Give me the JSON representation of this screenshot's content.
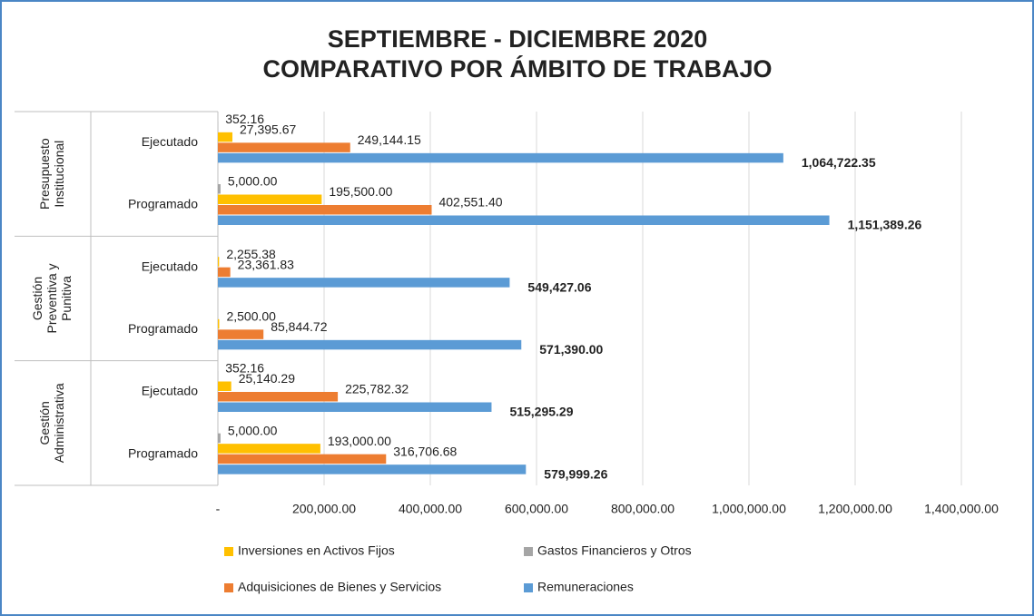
{
  "chart_data": {
    "type": "bar",
    "orientation": "horizontal",
    "title": [
      "SEPTIEMBRE - DICIEMBRE 2020",
      "COMPARATIVO POR ÁMBITO DE TRABAJO"
    ],
    "groups": [
      {
        "name": "Presupuesto Institucional",
        "categories": [
          "Ejecutado",
          "Programado"
        ]
      },
      {
        "name": "Gestión Preventiva y Punitiva",
        "categories": [
          "Ejecutado",
          "Programado"
        ]
      },
      {
        "name": "Gestión Administrativa",
        "categories": [
          "Ejecutado",
          "Programado"
        ]
      }
    ],
    "series": [
      {
        "name": "Gastos Financieros y Otros",
        "color": "#a5a5a5",
        "values": [
          352.16,
          5000,
          null,
          null,
          352.16,
          5000
        ],
        "value_labels": [
          "352.16",
          "5,000.00",
          null,
          null,
          "352.16",
          "5,000.00"
        ]
      },
      {
        "name": "Inversiones en Activos Fijos",
        "color": "#ffc000",
        "values": [
          27395.67,
          195500,
          2255.38,
          2500,
          25140.29,
          193000
        ],
        "value_labels": [
          "27,395.67",
          "195,500.00",
          "2,255.38",
          "2,500.00",
          "25,140.29",
          "193,000.00"
        ]
      },
      {
        "name": "Adquisiciones de Bienes y Servicios",
        "color": "#ed7d31",
        "values": [
          249144.15,
          402551.4,
          23361.83,
          85844.72,
          225782.32,
          316706.68
        ],
        "value_labels": [
          "249,144.15",
          "402,551.40",
          "23,361.83",
          "85,844.72",
          "225,782.32",
          "316,706.68"
        ]
      },
      {
        "name": "Remuneraciones",
        "color": "#5b9bd5",
        "bold_labels": true,
        "values": [
          1064722.35,
          1151389.26,
          549427.06,
          571390,
          515295.29,
          579999.26
        ],
        "value_labels": [
          "1,064,722.35",
          "1,151,389.26",
          "549,427.06",
          "571,390.00",
          "515,295.29",
          "579,999.26"
        ]
      }
    ],
    "legend_order": [
      1,
      0,
      2,
      3
    ],
    "xlim": [
      0,
      1400000
    ],
    "xticks": [
      {
        "value": 0,
        "label": "-"
      },
      {
        "value": 200000,
        "label": "200,000.00"
      },
      {
        "value": 400000,
        "label": "400,000.00"
      },
      {
        "value": 600000,
        "label": "600,000.00"
      },
      {
        "value": 800000,
        "label": "800,000.00"
      },
      {
        "value": 1000000,
        "label": "1,000,000.00"
      },
      {
        "value": 1200000,
        "label": "1,200,000.00"
      },
      {
        "value": 1400000,
        "label": "1,400,000.00"
      }
    ],
    "grid": true,
    "legend": "bottom"
  }
}
